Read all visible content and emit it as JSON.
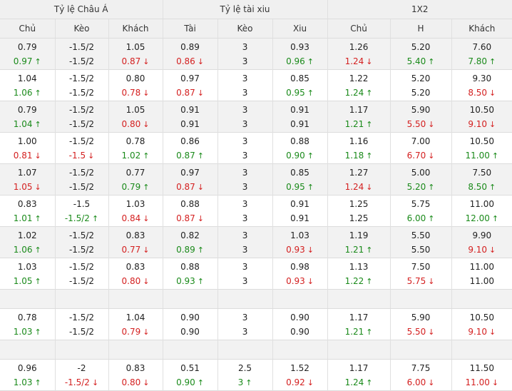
{
  "headers": {
    "asian": "Tỷ lệ Châu Á",
    "ou": "Tỷ lệ tài xiu",
    "x12": "1X2"
  },
  "subheaders": [
    "Chủ",
    "Kèo",
    "Khách",
    "Tài",
    "Kèo",
    "Xiu",
    "Chủ",
    "H",
    "Khách"
  ],
  "blocks": [
    {
      "shade": true,
      "empty": false,
      "rows": [
        [
          [
            "0.79",
            ""
          ],
          [
            "-1.5/2",
            ""
          ],
          [
            "1.05",
            ""
          ],
          [
            "0.89",
            ""
          ],
          [
            "3",
            ""
          ],
          [
            "0.93",
            ""
          ],
          [
            "1.26",
            ""
          ],
          [
            "5.20",
            ""
          ],
          [
            "7.60",
            ""
          ]
        ],
        [
          [
            "0.97",
            "up"
          ],
          [
            "-1.5/2",
            ""
          ],
          [
            "0.87",
            "down"
          ],
          [
            "0.86",
            "down"
          ],
          [
            "3",
            ""
          ],
          [
            "0.96",
            "up"
          ],
          [
            "1.24",
            "down"
          ],
          [
            "5.40",
            "up"
          ],
          [
            "7.80",
            "up"
          ]
        ]
      ]
    },
    {
      "shade": false,
      "empty": false,
      "rows": [
        [
          [
            "1.04",
            ""
          ],
          [
            "-1.5/2",
            ""
          ],
          [
            "0.80",
            ""
          ],
          [
            "0.97",
            ""
          ],
          [
            "3",
            ""
          ],
          [
            "0.85",
            ""
          ],
          [
            "1.22",
            ""
          ],
          [
            "5.20",
            ""
          ],
          [
            "9.30",
            ""
          ]
        ],
        [
          [
            "1.06",
            "up"
          ],
          [
            "-1.5/2",
            ""
          ],
          [
            "0.78",
            "down"
          ],
          [
            "0.87",
            "down"
          ],
          [
            "3",
            ""
          ],
          [
            "0.95",
            "up"
          ],
          [
            "1.24",
            "up"
          ],
          [
            "5.20",
            ""
          ],
          [
            "8.50",
            "down"
          ]
        ]
      ]
    },
    {
      "shade": true,
      "empty": false,
      "rows": [
        [
          [
            "0.79",
            ""
          ],
          [
            "-1.5/2",
            ""
          ],
          [
            "1.05",
            ""
          ],
          [
            "0.91",
            ""
          ],
          [
            "3",
            ""
          ],
          [
            "0.91",
            ""
          ],
          [
            "1.17",
            ""
          ],
          [
            "5.90",
            ""
          ],
          [
            "10.50",
            ""
          ]
        ],
        [
          [
            "1.04",
            "up"
          ],
          [
            "-1.5/2",
            ""
          ],
          [
            "0.80",
            "down"
          ],
          [
            "0.91",
            ""
          ],
          [
            "3",
            ""
          ],
          [
            "0.91",
            ""
          ],
          [
            "1.21",
            "up"
          ],
          [
            "5.50",
            "down"
          ],
          [
            "9.10",
            "down"
          ]
        ]
      ]
    },
    {
      "shade": false,
      "empty": false,
      "rows": [
        [
          [
            "1.00",
            ""
          ],
          [
            "-1.5/2",
            ""
          ],
          [
            "0.78",
            ""
          ],
          [
            "0.86",
            ""
          ],
          [
            "3",
            ""
          ],
          [
            "0.88",
            ""
          ],
          [
            "1.16",
            ""
          ],
          [
            "7.00",
            ""
          ],
          [
            "10.50",
            ""
          ]
        ],
        [
          [
            "0.81",
            "down"
          ],
          [
            "-1.5",
            "down"
          ],
          [
            "1.02",
            "up"
          ],
          [
            "0.87",
            "up"
          ],
          [
            "3",
            ""
          ],
          [
            "0.90",
            "up"
          ],
          [
            "1.18",
            "up"
          ],
          [
            "6.70",
            "down"
          ],
          [
            "11.00",
            "up"
          ]
        ]
      ]
    },
    {
      "shade": true,
      "empty": false,
      "rows": [
        [
          [
            "1.07",
            ""
          ],
          [
            "-1.5/2",
            ""
          ],
          [
            "0.77",
            ""
          ],
          [
            "0.97",
            ""
          ],
          [
            "3",
            ""
          ],
          [
            "0.85",
            ""
          ],
          [
            "1.27",
            ""
          ],
          [
            "5.00",
            ""
          ],
          [
            "7.50",
            ""
          ]
        ],
        [
          [
            "1.05",
            "down"
          ],
          [
            "-1.5/2",
            ""
          ],
          [
            "0.79",
            "up"
          ],
          [
            "0.87",
            "down"
          ],
          [
            "3",
            ""
          ],
          [
            "0.95",
            "up"
          ],
          [
            "1.24",
            "down"
          ],
          [
            "5.20",
            "up"
          ],
          [
            "8.50",
            "up"
          ]
        ]
      ]
    },
    {
      "shade": false,
      "empty": false,
      "rows": [
        [
          [
            "0.83",
            ""
          ],
          [
            "-1.5",
            ""
          ],
          [
            "1.03",
            ""
          ],
          [
            "0.88",
            ""
          ],
          [
            "3",
            ""
          ],
          [
            "0.91",
            ""
          ],
          [
            "1.25",
            ""
          ],
          [
            "5.75",
            ""
          ],
          [
            "11.00",
            ""
          ]
        ],
        [
          [
            "1.01",
            "up"
          ],
          [
            "-1.5/2",
            "up"
          ],
          [
            "0.84",
            "down"
          ],
          [
            "0.87",
            "down"
          ],
          [
            "3",
            ""
          ],
          [
            "0.91",
            ""
          ],
          [
            "1.25",
            ""
          ],
          [
            "6.00",
            "up"
          ],
          [
            "12.00",
            "up"
          ]
        ]
      ]
    },
    {
      "shade": true,
      "empty": false,
      "rows": [
        [
          [
            "1.02",
            ""
          ],
          [
            "-1.5/2",
            ""
          ],
          [
            "0.83",
            ""
          ],
          [
            "0.82",
            ""
          ],
          [
            "3",
            ""
          ],
          [
            "1.03",
            ""
          ],
          [
            "1.19",
            ""
          ],
          [
            "5.50",
            ""
          ],
          [
            "9.90",
            ""
          ]
        ],
        [
          [
            "1.06",
            "up"
          ],
          [
            "-1.5/2",
            ""
          ],
          [
            "0.77",
            "down"
          ],
          [
            "0.89",
            "up"
          ],
          [
            "3",
            ""
          ],
          [
            "0.93",
            "down"
          ],
          [
            "1.21",
            "up"
          ],
          [
            "5.50",
            ""
          ],
          [
            "9.10",
            "down"
          ]
        ]
      ]
    },
    {
      "shade": false,
      "empty": false,
      "rows": [
        [
          [
            "1.03",
            ""
          ],
          [
            "-1.5/2",
            ""
          ],
          [
            "0.83",
            ""
          ],
          [
            "0.88",
            ""
          ],
          [
            "3",
            ""
          ],
          [
            "0.98",
            ""
          ],
          [
            "1.13",
            ""
          ],
          [
            "7.50",
            ""
          ],
          [
            "11.00",
            ""
          ]
        ],
        [
          [
            "1.05",
            "up"
          ],
          [
            "-1.5/2",
            ""
          ],
          [
            "0.80",
            "down"
          ],
          [
            "0.93",
            "up"
          ],
          [
            "3",
            ""
          ],
          [
            "0.93",
            "down"
          ],
          [
            "1.22",
            "up"
          ],
          [
            "5.75",
            "down"
          ],
          [
            "11.00",
            ""
          ]
        ]
      ]
    },
    {
      "shade": true,
      "empty": true,
      "rows": []
    },
    {
      "shade": false,
      "empty": false,
      "rows": [
        [
          [
            "0.78",
            ""
          ],
          [
            "-1.5/2",
            ""
          ],
          [
            "1.04",
            ""
          ],
          [
            "0.90",
            ""
          ],
          [
            "3",
            ""
          ],
          [
            "0.90",
            ""
          ],
          [
            "1.17",
            ""
          ],
          [
            "5.90",
            ""
          ],
          [
            "10.50",
            ""
          ]
        ],
        [
          [
            "1.03",
            "up"
          ],
          [
            "-1.5/2",
            ""
          ],
          [
            "0.79",
            "down"
          ],
          [
            "0.90",
            ""
          ],
          [
            "3",
            ""
          ],
          [
            "0.90",
            ""
          ],
          [
            "1.21",
            "up"
          ],
          [
            "5.50",
            "down"
          ],
          [
            "9.10",
            "down"
          ]
        ]
      ]
    },
    {
      "shade": true,
      "empty": true,
      "rows": []
    },
    {
      "shade": false,
      "empty": false,
      "rows": [
        [
          [
            "0.96",
            ""
          ],
          [
            "-2",
            ""
          ],
          [
            "0.83",
            ""
          ],
          [
            "0.51",
            ""
          ],
          [
            "2.5",
            ""
          ],
          [
            "1.52",
            ""
          ],
          [
            "1.17",
            ""
          ],
          [
            "7.75",
            ""
          ],
          [
            "11.50",
            ""
          ]
        ],
        [
          [
            "1.03",
            "up"
          ],
          [
            "-1.5/2",
            "down"
          ],
          [
            "0.80",
            "down"
          ],
          [
            "0.90",
            "up"
          ],
          [
            "3",
            "up"
          ],
          [
            "0.92",
            "down"
          ],
          [
            "1.24",
            "up"
          ],
          [
            "6.00",
            "down"
          ],
          [
            "11.00",
            "down"
          ]
        ]
      ]
    }
  ]
}
